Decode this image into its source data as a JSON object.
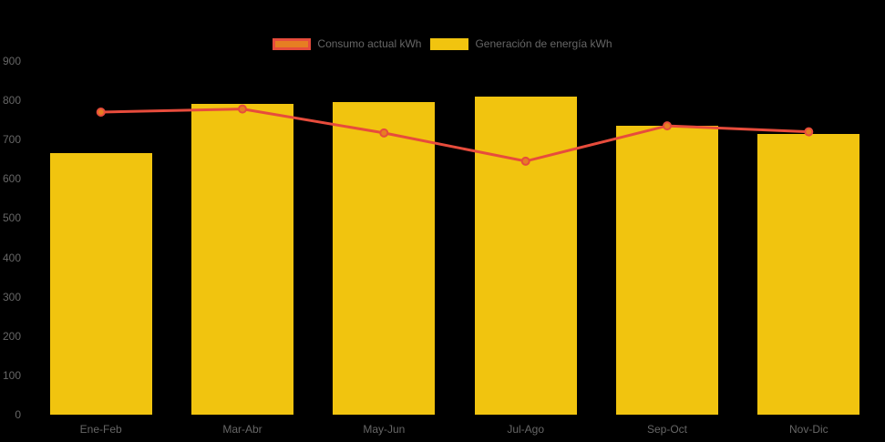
{
  "colors": {
    "background": "#000000",
    "bar": "#F1C40F",
    "line": "#E74C3C",
    "point_fill": "#E67E22",
    "axis_text": "#666666",
    "legend_text": "#666666"
  },
  "legend": {
    "items": [
      {
        "label": "Consumo actual kWh",
        "swatch_fill": "#E67E22",
        "swatch_border": "#E74C3C"
      },
      {
        "label": "Generación de energía kWh",
        "swatch_fill": "#F1C40F",
        "swatch_border": "#F1C40F"
      }
    ]
  },
  "chart_data": {
    "type": "bar",
    "subtype": "bar-with-line-overlay",
    "title": "",
    "xlabel": "",
    "ylabel": "",
    "categories": [
      "Ene-Feb",
      "Mar-Abr",
      "May-Jun",
      "Jul-Ago",
      "Sep-Oct",
      "Nov-Dic"
    ],
    "series": [
      {
        "name": "Consumo actual kWh",
        "type": "line",
        "color": "#E74C3C",
        "point_fill": "#E67E22",
        "values": [
          770,
          778,
          717,
          645,
          735,
          720
        ]
      },
      {
        "name": "Generación de energía kWh",
        "type": "bar",
        "color": "#F1C40F",
        "values": [
          665,
          790,
          795,
          810,
          735,
          715
        ]
      }
    ],
    "ylim": [
      0,
      900
    ],
    "yticks": [
      0,
      100,
      200,
      300,
      400,
      500,
      600,
      700,
      800,
      900
    ],
    "grid": false,
    "legend_position": "top"
  }
}
